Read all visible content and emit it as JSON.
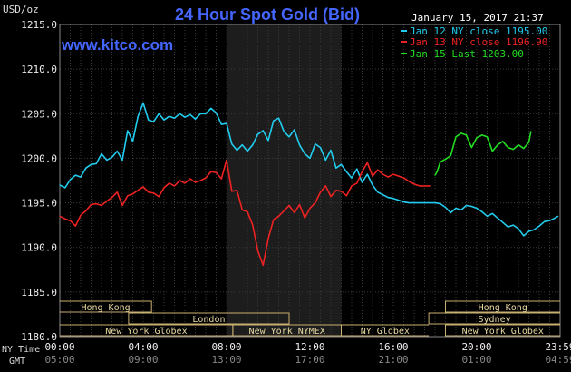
{
  "chart_data": {
    "type": "line",
    "title": "24 Hour Spot Gold (Bid)",
    "watermark": "www.kitco.com",
    "timestamp": "January 15, 2017 21:37",
    "ylabel": "USD/oz",
    "ylim": [
      1180,
      1215
    ],
    "y_ticks": [
      "1215.0",
      "1210.0",
      "1205.0",
      "1200.0",
      "1195.0",
      "1190.0",
      "1185.0",
      "1180.0"
    ],
    "y_tick_values": [
      1215,
      1210,
      1205,
      1200,
      1195,
      1190,
      1185,
      1180
    ],
    "xlim": [
      0,
      24
    ],
    "x_tick_hours": [
      0,
      4,
      8,
      12,
      16,
      20,
      24
    ],
    "x_ticks_ny": [
      "00:00",
      "04:00",
      "08:00",
      "12:00",
      "16:00",
      "20:00",
      "23:59"
    ],
    "x_ticks_gmt": [
      "05:00",
      "09:00",
      "13:00",
      "17:00",
      "21:00",
      "01:00",
      "04:59"
    ],
    "x_row_label_ny": "NY Time",
    "x_row_label_gmt": "GMT",
    "grid": true,
    "legend_position": "top-right",
    "legend": [
      {
        "label": "Jan 12 NY close 1195.00",
        "color": "#22ccee"
      },
      {
        "label": "Jan 13 NY close 1196.90",
        "color": "#ee2222"
      },
      {
        "label": "Jan 15 Last 1203.00",
        "color": "#22dd22"
      }
    ],
    "shaded_session": {
      "x_start": 8.0,
      "x_end": 13.5
    },
    "sessions": [
      {
        "label": "Hong Kong",
        "x_start": 0,
        "x_end": 4.4,
        "row": 0,
        "part": "start"
      },
      {
        "label": "London",
        "x_start": 3.3,
        "x_end": 11.0,
        "row": 1,
        "part": "full"
      },
      {
        "label": "New York Globex",
        "x_start": 0,
        "x_end": 8.3,
        "row": 2,
        "part": "start"
      },
      {
        "label": "New York NYMEX",
        "x_start": 8.3,
        "x_end": 13.5,
        "row": 2,
        "part": "full"
      },
      {
        "label": "NY Globex",
        "x_start": 13.5,
        "x_end": 17.7,
        "row": 2,
        "part": "end"
      },
      {
        "label": "Hong Kong",
        "x_start": 18.5,
        "x_end": 24,
        "row": 0,
        "part": "end"
      },
      {
        "label": "Sydney",
        "x_start": 17.7,
        "x_end": 24,
        "row": 1,
        "part": "end"
      },
      {
        "label": "New York Globex",
        "x_start": 18.5,
        "x_end": 24,
        "row": 2,
        "part": "end"
      }
    ],
    "series": [
      {
        "name": "Jan 12 NY close 1195.00",
        "color": "#22ccee",
        "x": [
          0.0,
          0.25,
          0.5,
          0.75,
          1.0,
          1.25,
          1.5,
          1.75,
          2.0,
          2.25,
          2.5,
          2.75,
          3.0,
          3.25,
          3.5,
          3.75,
          4.0,
          4.25,
          4.5,
          4.75,
          5.0,
          5.25,
          5.5,
          5.75,
          6.0,
          6.25,
          6.5,
          6.75,
          7.0,
          7.25,
          7.5,
          7.75,
          8.0,
          8.25,
          8.5,
          8.75,
          9.0,
          9.25,
          9.5,
          9.75,
          10.0,
          10.25,
          10.5,
          10.75,
          11.0,
          11.25,
          11.5,
          11.75,
          12.0,
          12.25,
          12.5,
          12.75,
          13.0,
          13.25,
          13.5,
          13.75,
          14.0,
          14.25,
          14.5,
          14.75,
          15.0,
          15.25,
          15.5,
          15.75,
          16.0,
          16.25,
          16.5,
          16.75,
          17.0,
          17.25,
          17.5,
          17.75,
          18.0,
          18.25,
          18.5,
          18.75,
          19.0,
          19.25,
          19.5,
          19.75,
          20.0,
          20.25,
          20.5,
          20.75,
          21.0,
          21.25,
          21.5,
          21.75,
          22.0,
          22.25,
          22.5,
          22.75,
          23.0,
          23.25,
          23.5,
          23.75,
          23.9
        ],
        "values": [
          1197.0,
          1196.7,
          1197.6,
          1198.1,
          1197.9,
          1198.9,
          1199.3,
          1199.4,
          1200.5,
          1199.8,
          1200.1,
          1200.8,
          1199.8,
          1203.1,
          1201.9,
          1204.7,
          1206.2,
          1204.3,
          1204.1,
          1205.0,
          1204.3,
          1204.7,
          1204.5,
          1205.0,
          1204.6,
          1204.9,
          1204.4,
          1205.0,
          1205.0,
          1205.6,
          1205.1,
          1203.8,
          1203.9,
          1201.6,
          1200.9,
          1201.5,
          1200.8,
          1201.5,
          1202.7,
          1203.1,
          1202.0,
          1204.2,
          1204.5,
          1203.0,
          1202.4,
          1203.2,
          1201.5,
          1200.5,
          1200.0,
          1201.6,
          1201.2,
          1199.8,
          1200.9,
          1198.9,
          1199.3,
          1198.5,
          1197.8,
          1198.8,
          1197.3,
          1198.2,
          1197.0,
          1196.2,
          1195.9,
          1195.6,
          1195.5,
          1195.3,
          1195.1,
          1195.0,
          1195.0,
          1195.0,
          1195.0,
          1195.0,
          1195.0,
          1194.9,
          1194.5,
          1193.9,
          1194.4,
          1194.2,
          1194.7,
          1194.6,
          1194.4,
          1194.0,
          1193.5,
          1193.8,
          1193.3,
          1192.8,
          1192.3,
          1192.5,
          1192.1,
          1191.3,
          1191.8,
          1192.0,
          1192.4,
          1192.9,
          1193.0,
          1193.3,
          1193.5
        ]
      },
      {
        "name": "Jan 13 NY close 1196.90",
        "color": "#ee2222",
        "x": [
          0.0,
          0.25,
          0.5,
          0.75,
          1.0,
          1.25,
          1.5,
          1.75,
          2.0,
          2.25,
          2.5,
          2.75,
          3.0,
          3.25,
          3.5,
          3.75,
          4.0,
          4.25,
          4.5,
          4.75,
          5.0,
          5.25,
          5.5,
          5.75,
          6.0,
          6.25,
          6.5,
          6.75,
          7.0,
          7.25,
          7.5,
          7.75,
          8.0,
          8.25,
          8.5,
          8.75,
          9.0,
          9.25,
          9.5,
          9.75,
          10.0,
          10.25,
          10.5,
          10.75,
          11.0,
          11.25,
          11.5,
          11.75,
          12.0,
          12.25,
          12.5,
          12.75,
          13.0,
          13.25,
          13.5,
          13.75,
          14.0,
          14.25,
          14.5,
          14.75,
          15.0,
          15.25,
          15.5,
          15.75,
          16.0,
          16.25,
          16.5,
          16.75,
          17.0,
          17.25,
          17.5,
          17.75
        ],
        "values": [
          1193.5,
          1193.2,
          1193.0,
          1192.4,
          1193.6,
          1194.1,
          1194.8,
          1194.9,
          1194.7,
          1195.2,
          1195.6,
          1196.2,
          1194.7,
          1195.8,
          1196.0,
          1196.4,
          1196.8,
          1196.2,
          1196.1,
          1195.7,
          1196.7,
          1197.2,
          1196.9,
          1197.5,
          1197.2,
          1197.7,
          1197.3,
          1197.5,
          1197.8,
          1198.5,
          1198.4,
          1197.7,
          1199.8,
          1196.3,
          1196.4,
          1194.2,
          1194.0,
          1192.5,
          1189.6,
          1188.0,
          1191.0,
          1193.1,
          1193.5,
          1194.1,
          1194.7,
          1193.9,
          1194.8,
          1193.3,
          1194.4,
          1195.0,
          1196.2,
          1196.9,
          1195.7,
          1196.4,
          1196.3,
          1195.8,
          1196.9,
          1197.2,
          1198.5,
          1199.5,
          1198.0,
          1198.7,
          1198.2,
          1197.9,
          1198.2,
          1198.0,
          1197.8,
          1197.4,
          1197.1,
          1196.9,
          1196.9,
          1196.9
        ]
      },
      {
        "name": "Jan 15 Last 1203.00",
        "color": "#22dd22",
        "x": [
          18.0,
          18.1,
          18.25,
          18.5,
          18.75,
          19.0,
          19.25,
          19.5,
          19.75,
          20.0,
          20.25,
          20.5,
          20.75,
          21.0,
          21.25,
          21.5,
          21.75,
          22.0,
          22.25,
          22.5,
          22.6
        ],
        "values": [
          1198.1,
          1198.5,
          1199.6,
          1199.9,
          1200.3,
          1202.4,
          1202.8,
          1202.6,
          1201.2,
          1202.3,
          1202.6,
          1202.4,
          1200.8,
          1201.5,
          1201.9,
          1201.2,
          1201.0,
          1201.5,
          1201.1,
          1201.8,
          1203.0
        ]
      }
    ]
  }
}
